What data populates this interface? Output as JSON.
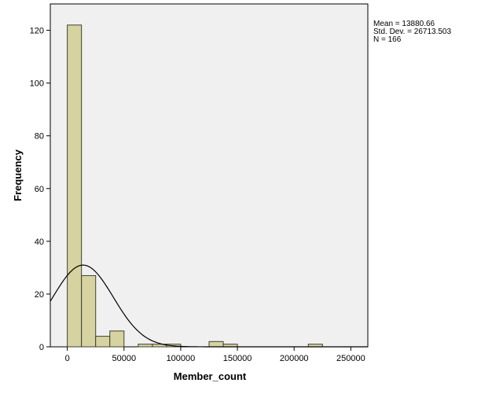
{
  "chart_data": {
    "type": "histogram",
    "xlabel": "Member_count",
    "ylabel": "Frequency",
    "xlim": [
      -15000,
      265000
    ],
    "ylim": [
      0,
      130
    ],
    "x_ticks": [
      0,
      50000,
      100000,
      150000,
      200000,
      250000
    ],
    "y_ticks": [
      0,
      20,
      40,
      60,
      80,
      100,
      120
    ],
    "bin_width": 12500,
    "bins": [
      {
        "start": 0,
        "end": 12500,
        "count": 122
      },
      {
        "start": 12500,
        "end": 25000,
        "count": 27
      },
      {
        "start": 25000,
        "end": 37500,
        "count": 4
      },
      {
        "start": 37500,
        "end": 50000,
        "count": 6
      },
      {
        "start": 62500,
        "end": 75000,
        "count": 1
      },
      {
        "start": 75000,
        "end": 87500,
        "count": 1
      },
      {
        "start": 87500,
        "end": 100000,
        "count": 1
      },
      {
        "start": 125000,
        "end": 137500,
        "count": 2
      },
      {
        "start": 137500,
        "end": 150000,
        "count": 1
      },
      {
        "start": 212500,
        "end": 225000,
        "count": 1
      }
    ],
    "normal_curve": {
      "mean": 13880.66,
      "sd": 26713.503,
      "n": 166
    },
    "colors": {
      "bar_fill": "#d6d3a0",
      "bar_stroke": "#3f3f33",
      "plot_bg": "#f0f0f0",
      "curve": "#000000"
    }
  },
  "stats": {
    "mean": "Mean = 13880.66",
    "std_dev": "Std. Dev. = 26713.503",
    "n": "N = 166"
  }
}
